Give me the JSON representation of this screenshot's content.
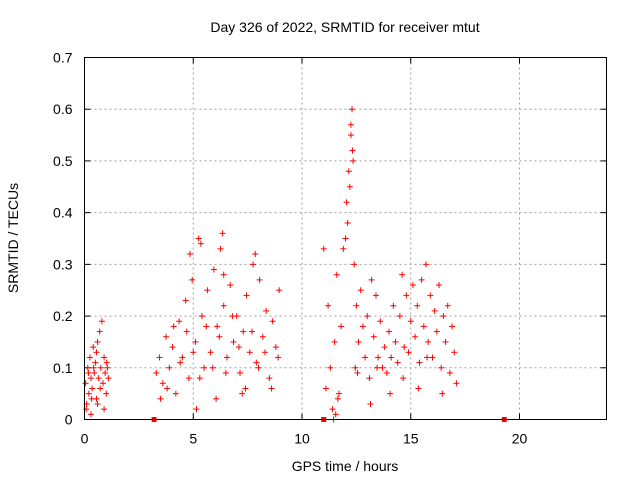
{
  "chart_data": {
    "type": "scatter",
    "title": "Day 326 of 2022, SRMTID for receiver mtut",
    "xlabel": "GPS time / hours",
    "ylabel": "SRMTID / TECUs",
    "xlim": [
      0,
      24
    ],
    "ylim": [
      0,
      0.7
    ],
    "x_ticks": [
      0,
      5,
      10,
      15,
      20
    ],
    "x_tick_labels": [
      "0",
      "5",
      "10",
      "15",
      "20"
    ],
    "y_ticks": [
      0,
      0.1,
      0.2,
      0.3,
      0.4,
      0.5,
      0.6,
      0.7
    ],
    "y_tick_labels": [
      "0",
      "0.1",
      "0.2",
      "0.3",
      "0.4",
      "0.5",
      "0.6",
      "0.7"
    ],
    "grid": true,
    "marker": "+",
    "color": "#ff0000",
    "series": [
      {
        "name": "SRMTID",
        "points": [
          [
            0.05,
            0.07
          ],
          [
            0.1,
            0.03
          ],
          [
            0.15,
            0.1
          ],
          [
            0.2,
            0.05
          ],
          [
            0.25,
            0.12
          ],
          [
            0.3,
            0.08
          ],
          [
            0.35,
            0.06
          ],
          [
            0.4,
            0.14
          ],
          [
            0.45,
            0.09
          ],
          [
            0.5,
            0.11
          ],
          [
            0.55,
            0.04
          ],
          [
            0.6,
            0.15
          ],
          [
            0.65,
            0.08
          ],
          [
            0.7,
            0.17
          ],
          [
            0.75,
            0.1
          ],
          [
            0.8,
            0.19
          ],
          [
            0.85,
            0.07
          ],
          [
            0.9,
            0.12
          ],
          [
            0.95,
            0.09
          ],
          [
            1.0,
            0.05
          ],
          [
            1.05,
            0.1
          ],
          [
            0.08,
            0.02
          ],
          [
            0.3,
            0.01
          ],
          [
            0.6,
            0.03
          ],
          [
            0.9,
            0.02
          ],
          [
            1.1,
            0.08
          ],
          [
            0.55,
            0.13
          ],
          [
            0.42,
            0.1
          ],
          [
            0.18,
            0.09
          ],
          [
            0.72,
            0.06
          ],
          [
            1.02,
            0.11
          ],
          [
            0.33,
            0.04
          ],
          [
            3.3,
            0.09
          ],
          [
            3.45,
            0.12
          ],
          [
            3.6,
            0.07
          ],
          [
            3.75,
            0.16
          ],
          [
            3.9,
            0.1
          ],
          [
            4.05,
            0.14
          ],
          [
            4.2,
            0.05
          ],
          [
            4.35,
            0.19
          ],
          [
            4.5,
            0.12
          ],
          [
            4.65,
            0.23
          ],
          [
            4.8,
            0.08
          ],
          [
            4.95,
            0.27
          ],
          [
            5.1,
            0.15
          ],
          [
            5.25,
            0.35
          ],
          [
            5.4,
            0.2
          ],
          [
            5.5,
            0.1
          ],
          [
            5.65,
            0.25
          ],
          [
            5.8,
            0.13
          ],
          [
            5.95,
            0.29
          ],
          [
            6.1,
            0.18
          ],
          [
            6.25,
            0.33
          ],
          [
            6.4,
            0.22
          ],
          [
            6.55,
            0.12
          ],
          [
            6.7,
            0.26
          ],
          [
            6.85,
            0.15
          ],
          [
            7.0,
            0.2
          ],
          [
            7.15,
            0.09
          ],
          [
            7.3,
            0.17
          ],
          [
            7.45,
            0.24
          ],
          [
            7.6,
            0.13
          ],
          [
            7.75,
            0.3
          ],
          [
            7.9,
            0.11
          ],
          [
            8.05,
            0.27
          ],
          [
            8.2,
            0.16
          ],
          [
            8.35,
            0.21
          ],
          [
            8.5,
            0.08
          ],
          [
            8.65,
            0.19
          ],
          [
            8.8,
            0.14
          ],
          [
            8.95,
            0.25
          ],
          [
            3.5,
            0.04
          ],
          [
            3.8,
            0.06
          ],
          [
            4.1,
            0.18
          ],
          [
            4.4,
            0.11
          ],
          [
            4.7,
            0.17
          ],
          [
            5.0,
            0.13
          ],
          [
            5.3,
            0.08
          ],
          [
            5.6,
            0.18
          ],
          [
            5.9,
            0.1
          ],
          [
            6.2,
            0.16
          ],
          [
            6.5,
            0.09
          ],
          [
            6.8,
            0.2
          ],
          [
            7.1,
            0.14
          ],
          [
            7.4,
            0.06
          ],
          [
            7.7,
            0.17
          ],
          [
            8.0,
            0.1
          ],
          [
            8.3,
            0.13
          ],
          [
            8.6,
            0.06
          ],
          [
            8.9,
            0.12
          ],
          [
            5.35,
            0.34
          ],
          [
            6.35,
            0.36
          ],
          [
            6.4,
            0.28
          ],
          [
            4.85,
            0.32
          ],
          [
            7.85,
            0.32
          ],
          [
            5.15,
            0.02
          ],
          [
            6.05,
            0.04
          ],
          [
            7.25,
            0.05
          ],
          [
            11.0,
            0.33
          ],
          [
            11.1,
            0.06
          ],
          [
            11.2,
            0.22
          ],
          [
            11.3,
            0.1
          ],
          [
            11.4,
            0.02
          ],
          [
            11.5,
            0.15
          ],
          [
            11.6,
            0.28
          ],
          [
            11.7,
            0.05
          ],
          [
            11.8,
            0.18
          ],
          [
            11.9,
            0.33
          ],
          [
            12.0,
            0.35
          ],
          [
            12.05,
            0.42
          ],
          [
            12.1,
            0.38
          ],
          [
            12.15,
            0.48
          ],
          [
            12.2,
            0.45
          ],
          [
            12.25,
            0.55
          ],
          [
            12.3,
            0.6
          ],
          [
            12.35,
            0.5
          ],
          [
            12.4,
            0.3
          ],
          [
            12.5,
            0.22
          ],
          [
            12.6,
            0.15
          ],
          [
            12.7,
            0.25
          ],
          [
            12.8,
            0.18
          ],
          [
            12.9,
            0.12
          ],
          [
            13.0,
            0.2
          ],
          [
            13.1,
            0.08
          ],
          [
            13.2,
            0.27
          ],
          [
            13.3,
            0.16
          ],
          [
            13.4,
            0.24
          ],
          [
            13.5,
            0.12
          ],
          [
            13.6,
            0.19
          ],
          [
            13.7,
            0.1
          ],
          [
            13.8,
            0.14
          ],
          [
            13.9,
            0.09
          ],
          [
            14.0,
            0.17
          ],
          [
            14.1,
            0.12
          ],
          [
            14.2,
            0.22
          ],
          [
            14.3,
            0.15
          ],
          [
            14.4,
            0.11
          ],
          [
            14.5,
            0.2
          ],
          [
            14.6,
            0.28
          ],
          [
            14.7,
            0.14
          ],
          [
            14.8,
            0.24
          ],
          [
            14.9,
            0.13
          ],
          [
            15.0,
            0.19
          ],
          [
            15.1,
            0.26
          ],
          [
            15.2,
            0.16
          ],
          [
            15.3,
            0.22
          ],
          [
            15.4,
            0.11
          ],
          [
            15.5,
            0.27
          ],
          [
            15.6,
            0.18
          ],
          [
            15.7,
            0.3
          ],
          [
            15.8,
            0.15
          ],
          [
            15.9,
            0.24
          ],
          [
            16.0,
            0.12
          ],
          [
            16.1,
            0.21
          ],
          [
            16.2,
            0.17
          ],
          [
            16.3,
            0.26
          ],
          [
            16.4,
            0.1
          ],
          [
            16.5,
            0.2
          ],
          [
            16.6,
            0.15
          ],
          [
            16.7,
            0.22
          ],
          [
            16.8,
            0.09
          ],
          [
            16.9,
            0.18
          ],
          [
            17.0,
            0.13
          ],
          [
            17.1,
            0.07
          ],
          [
            11.45,
            0.0
          ],
          [
            11.55,
            0.01
          ],
          [
            11.65,
            0.04
          ],
          [
            12.45,
            0.1
          ],
          [
            12.55,
            0.09
          ],
          [
            13.15,
            0.03
          ],
          [
            14.05,
            0.05
          ],
          [
            15.35,
            0.06
          ],
          [
            16.45,
            0.05
          ],
          [
            14.65,
            0.08
          ],
          [
            13.45,
            0.1
          ],
          [
            15.75,
            0.12
          ],
          [
            12.25,
            0.57
          ],
          [
            12.32,
            0.52
          ]
        ]
      }
    ],
    "gap_markers": [
      3.2,
      11.0,
      19.3
    ]
  }
}
